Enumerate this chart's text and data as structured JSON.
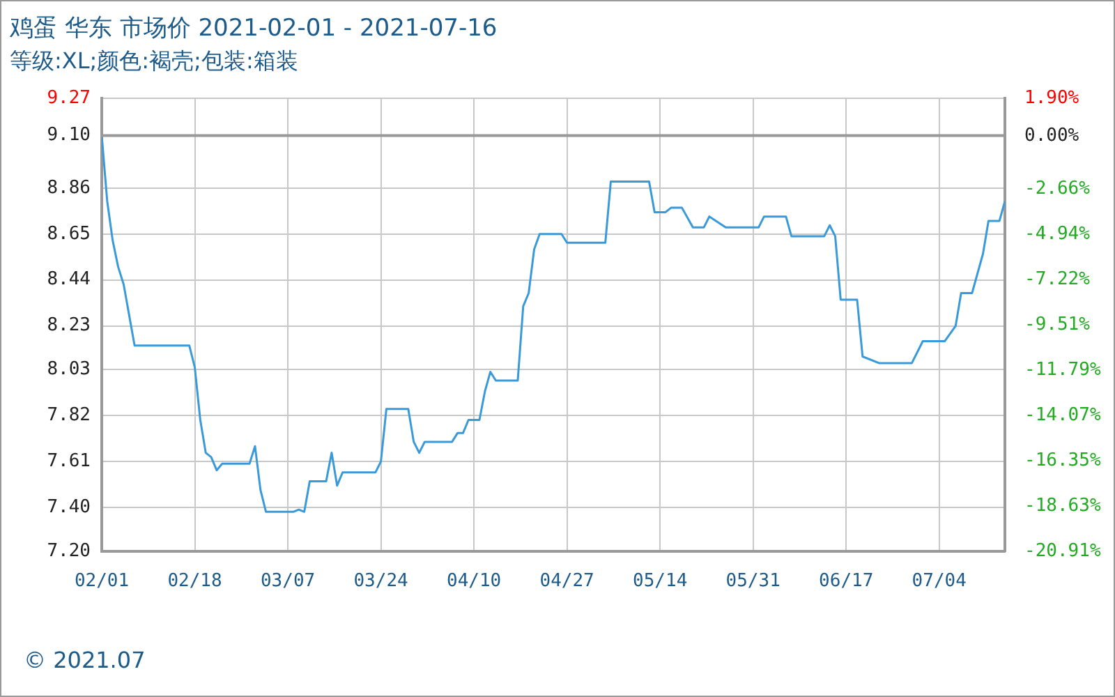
{
  "chart_data": {
    "type": "line",
    "title": "鸡蛋 华东 市场价 2021-02-01 - 2021-07-16",
    "subtitle": "等级:XL;颜色:褐壳;包装:箱装",
    "annotations": [
      "© 2021.07"
    ],
    "series": [
      {
        "color": "#3a9ad9",
        "x": [
          "--02-01",
          "--02-02",
          "--02-03",
          "--02-04",
          "--02-05",
          "--02-06",
          "--02-07",
          "--02-17",
          "--02-18",
          "--02-19",
          "--02-20",
          "--02-21",
          "--02-22",
          "--02-23",
          "--02-28",
          "--03-01",
          "--03-02",
          "--03-03",
          "--03-08",
          "--03-09",
          "--03-10",
          "--03-11",
          "--03-14",
          "--03-15",
          "--03-16",
          "--03-17",
          "--03-23",
          "--03-24",
          "--03-25",
          "--03-29",
          "--03-30",
          "--03-31",
          "--04-01",
          "--04-06",
          "--04-07",
          "--04-08",
          "--04-09",
          "--04-11",
          "--04-12",
          "--04-13",
          "--04-14",
          "--04-18",
          "--04-19",
          "--04-20",
          "--04-21",
          "--04-22",
          "--04-26",
          "--04-27",
          "--05-04",
          "--05-05",
          "--05-12",
          "--05-13",
          "--05-15",
          "--05-16",
          "--05-18",
          "--05-20",
          "--05-22",
          "--05-23",
          "--05-26",
          "--06-01",
          "--06-02",
          "--06-06",
          "--06-07",
          "--06-13",
          "--06-14",
          "--06-15",
          "--06-16",
          "--06-19",
          "--06-20",
          "--06-23",
          "--06-29",
          "--07-01",
          "--07-05",
          "--07-07",
          "--07-08",
          "--07-10",
          "--07-12",
          "--07-13",
          "--07-15",
          "--07-16"
        ],
        "values": [
          9.1,
          8.8,
          8.62,
          8.5,
          8.42,
          8.28,
          8.14,
          8.14,
          8.04,
          7.8,
          7.65,
          7.63,
          7.57,
          7.6,
          7.6,
          7.68,
          7.48,
          7.38,
          7.38,
          7.39,
          7.38,
          7.52,
          7.52,
          7.65,
          7.5,
          7.56,
          7.56,
          7.61,
          7.85,
          7.85,
          7.7,
          7.65,
          7.7,
          7.7,
          7.74,
          7.74,
          7.8,
          7.8,
          7.93,
          8.02,
          7.98,
          7.98,
          8.32,
          8.38,
          8.58,
          8.65,
          8.65,
          8.61,
          8.61,
          8.89,
          8.89,
          8.75,
          8.75,
          8.77,
          8.77,
          8.68,
          8.68,
          8.73,
          8.68,
          8.68,
          8.73,
          8.73,
          8.64,
          8.64,
          8.69,
          8.64,
          8.35,
          8.35,
          8.09,
          8.06,
          8.06,
          8.16,
          8.16,
          8.23,
          8.38,
          8.38,
          8.56,
          8.71,
          8.71,
          8.8
        ]
      }
    ],
    "xlim": [
      "--02-01",
      "--07-16"
    ],
    "xticks": [
      {
        "value": "--02-01",
        "label": "02/01"
      },
      {
        "value": "--02-18",
        "label": "02/18"
      },
      {
        "value": "--03-07",
        "label": "03/07"
      },
      {
        "value": "--03-24",
        "label": "03/24"
      },
      {
        "value": "--04-10",
        "label": "04/10"
      },
      {
        "value": "--04-27",
        "label": "04/27"
      },
      {
        "value": "--05-14",
        "label": "05/14"
      },
      {
        "value": "--05-31",
        "label": "05/31"
      },
      {
        "value": "--06-17",
        "label": "06/17"
      },
      {
        "value": "--07-04",
        "label": "07/04"
      }
    ],
    "ylim": [
      7.2,
      9.27
    ],
    "yticks": [
      {
        "value": 9.27,
        "label": "9.27"
      },
      {
        "value": 9.1,
        "label": "9.10"
      },
      8.86,
      8.65,
      8.44,
      8.23,
      8.03,
      7.82,
      7.61,
      {
        "value": 7.4,
        "label": "7.40"
      },
      {
        "value": 7.2,
        "label": "7.20"
      }
    ],
    "y2lim": [
      -20.91,
      1.9
    ],
    "y2ticks": [
      {
        "value": 1.9,
        "label": "1.90%"
      },
      {
        "value": 0,
        "label": "0.00%"
      },
      {
        "value": -2.66,
        "label": "-2.66%"
      },
      {
        "value": -4.94,
        "label": "-4.94%"
      },
      {
        "value": -7.22,
        "label": "-7.22%"
      },
      {
        "value": -9.51,
        "label": "-9.51%"
      },
      {
        "value": -11.79,
        "label": "-11.79%"
      },
      {
        "value": -14.07,
        "label": "-14.07%"
      },
      {
        "value": -16.35,
        "label": "-16.35%"
      },
      {
        "value": -18.63,
        "label": "-18.63%"
      },
      {
        "value": -20.91,
        "label": "-20.91%"
      }
    ],
    "ref_lines": [
      {
        "axis": "y",
        "value": 9.1,
        "color": "#999999"
      }
    ],
    "grid": true,
    "legend": false,
    "marker": "none",
    "line_style": "solid"
  }
}
